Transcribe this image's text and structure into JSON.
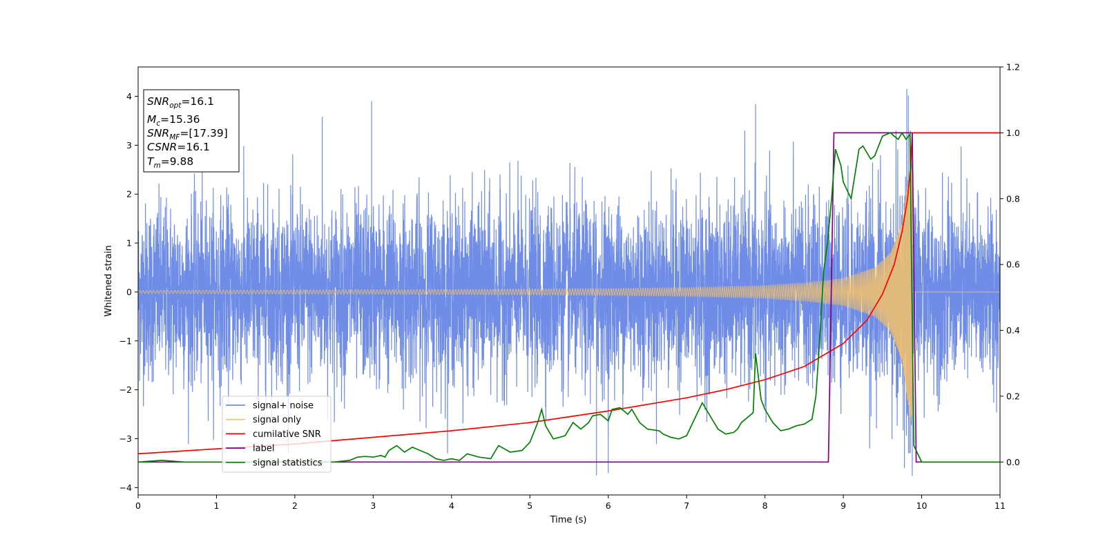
{
  "chart_data": {
    "type": "line",
    "title": "",
    "xlabel": "Time (s)",
    "ylabel": "Whitened strain",
    "xlim": [
      0,
      11
    ],
    "ylim": [
      -4.15,
      4.6
    ],
    "y2lim": [
      -0.1,
      1.2
    ],
    "x_ticks": [
      "0",
      "1",
      "2",
      "3",
      "4",
      "5",
      "6",
      "7",
      "8",
      "9",
      "10",
      "11"
    ],
    "y_ticks": [
      "4",
      "3",
      "2",
      "1",
      "0",
      "−1",
      "−2",
      "−3",
      "−4"
    ],
    "y2_ticks": [
      "1.2",
      "1.0",
      "0.8",
      "0.6",
      "0.4",
      "0.2",
      "0.0"
    ],
    "grid": false,
    "legend_position": "lower-left",
    "colors": {
      "signal_noise": "#6f8de6",
      "signal_only": "#f5c168",
      "cumulative_snr": "#ff0000",
      "label": "#800080",
      "signal_statistics": "#008000"
    },
    "legend": [
      {
        "key": "signal_noise",
        "label": "signal+ noise"
      },
      {
        "key": "signal_only",
        "label": "signal only"
      },
      {
        "key": "cumulative_snr",
        "label": "cumilative SNR"
      },
      {
        "key": "label",
        "label": "label"
      },
      {
        "key": "signal_statistics",
        "label": "signal statistics"
      }
    ],
    "annotation": {
      "snr_opt": {
        "name": "SNR",
        "sub": "opt",
        "value": "=16.1"
      },
      "mc": {
        "name": "M",
        "sub": "c",
        "value": "=15.36"
      },
      "snr_mf": {
        "name": "SNR",
        "sub": "MF",
        "value": "=[17.39]"
      },
      "csnr": {
        "name": "CSNR",
        "value": "=16.1"
      },
      "tm": {
        "name": "T",
        "sub": "m",
        "value": "=9.88"
      }
    },
    "series": {
      "signal_noise": {
        "axis": "left",
        "description_values": "Gaussian noise with typical range about ±2.5 and peaks near 4.2, ending at 11 s",
        "spike_points": [
          [
            2.35,
            3.58
          ],
          [
            2.98,
            3.9
          ],
          [
            7.88,
            3.84
          ],
          [
            9.81,
            4.15
          ],
          [
            9.83,
            4.02
          ],
          [
            5.85,
            -3.75
          ],
          [
            6.0,
            -3.7
          ],
          [
            9.78,
            -3.6
          ],
          [
            9.88,
            -3.76
          ]
        ]
      },
      "signal_only": {
        "axis": "left",
        "description_values": "chirp with amplitude growing from 0.03 to about 2.6 at merger t=9.88 s, then 0",
        "amplitude": [
          [
            0,
            0.03
          ],
          [
            2,
            0.04
          ],
          [
            4,
            0.05
          ],
          [
            6,
            0.07
          ],
          [
            7,
            0.09
          ],
          [
            8,
            0.13
          ],
          [
            8.5,
            0.18
          ],
          [
            9,
            0.28
          ],
          [
            9.4,
            0.5
          ],
          [
            9.6,
            0.8
          ],
          [
            9.75,
            1.4
          ],
          [
            9.85,
            2.6
          ],
          [
            9.88,
            2.7
          ]
        ]
      },
      "cumulative_snr": {
        "axis": "right",
        "points": [
          [
            0,
            0.025
          ],
          [
            1,
            0.04
          ],
          [
            2,
            0.055
          ],
          [
            3,
            0.075
          ],
          [
            4,
            0.095
          ],
          [
            5,
            0.12
          ],
          [
            6,
            0.155
          ],
          [
            7,
            0.195
          ],
          [
            7.5,
            0.22
          ],
          [
            8,
            0.25
          ],
          [
            8.5,
            0.29
          ],
          [
            9,
            0.36
          ],
          [
            9.3,
            0.43
          ],
          [
            9.5,
            0.51
          ],
          [
            9.65,
            0.6
          ],
          [
            9.75,
            0.7
          ],
          [
            9.82,
            0.8
          ],
          [
            9.86,
            0.9
          ],
          [
            9.88,
            1.0
          ],
          [
            11,
            1.0
          ]
        ]
      },
      "label": {
        "axis": "right",
        "points": [
          [
            0,
            0.0
          ],
          [
            8.81,
            0.0
          ],
          [
            8.88,
            1.0
          ],
          [
            9.88,
            1.0
          ],
          [
            9.93,
            0.0
          ],
          [
            11,
            0.0
          ]
        ]
      },
      "signal_statistics": {
        "axis": "right",
        "points": [
          [
            0,
            0.0
          ],
          [
            0.3,
            0.005
          ],
          [
            0.6,
            0.0
          ],
          [
            2.5,
            0.0
          ],
          [
            2.7,
            0.005
          ],
          [
            2.8,
            0.015
          ],
          [
            2.9,
            0.017
          ],
          [
            3.0,
            0.015
          ],
          [
            3.1,
            0.02
          ],
          [
            3.15,
            0.015
          ],
          [
            3.2,
            0.035
          ],
          [
            3.3,
            0.05
          ],
          [
            3.4,
            0.03
          ],
          [
            3.5,
            0.045
          ],
          [
            3.6,
            0.035
          ],
          [
            3.7,
            0.025
          ],
          [
            3.8,
            0.01
          ],
          [
            3.9,
            0.005
          ],
          [
            4.0,
            0.01
          ],
          [
            4.1,
            0.005
          ],
          [
            4.2,
            0.025
          ],
          [
            4.35,
            0.015
          ],
          [
            4.5,
            0.01
          ],
          [
            4.6,
            0.05
          ],
          [
            4.75,
            0.03
          ],
          [
            4.9,
            0.035
          ],
          [
            5.0,
            0.06
          ],
          [
            5.1,
            0.12
          ],
          [
            5.15,
            0.16
          ],
          [
            5.2,
            0.11
          ],
          [
            5.3,
            0.07
          ],
          [
            5.45,
            0.08
          ],
          [
            5.5,
            0.1
          ],
          [
            5.55,
            0.12
          ],
          [
            5.65,
            0.1
          ],
          [
            5.75,
            0.12
          ],
          [
            5.8,
            0.14
          ],
          [
            5.9,
            0.145
          ],
          [
            6.0,
            0.125
          ],
          [
            6.05,
            0.16
          ],
          [
            6.15,
            0.165
          ],
          [
            6.25,
            0.145
          ],
          [
            6.3,
            0.16
          ],
          [
            6.4,
            0.12
          ],
          [
            6.5,
            0.1
          ],
          [
            6.65,
            0.095
          ],
          [
            6.7,
            0.085
          ],
          [
            6.8,
            0.075
          ],
          [
            6.9,
            0.07
          ],
          [
            6.95,
            0.075
          ],
          [
            7.0,
            0.08
          ],
          [
            7.1,
            0.13
          ],
          [
            7.2,
            0.18
          ],
          [
            7.3,
            0.14
          ],
          [
            7.4,
            0.1
          ],
          [
            7.5,
            0.085
          ],
          [
            7.6,
            0.09
          ],
          [
            7.65,
            0.1
          ],
          [
            7.7,
            0.12
          ],
          [
            7.85,
            0.15
          ],
          [
            7.88,
            0.33
          ],
          [
            7.95,
            0.19
          ],
          [
            8.0,
            0.16
          ],
          [
            8.1,
            0.12
          ],
          [
            8.2,
            0.095
          ],
          [
            8.3,
            0.1
          ],
          [
            8.4,
            0.11
          ],
          [
            8.5,
            0.115
          ],
          [
            8.6,
            0.13
          ],
          [
            8.65,
            0.2
          ],
          [
            8.7,
            0.38
          ],
          [
            8.75,
            0.58
          ],
          [
            8.8,
            0.67
          ],
          [
            8.85,
            0.8
          ],
          [
            8.9,
            0.95
          ],
          [
            8.97,
            0.9
          ],
          [
            9.0,
            0.85
          ],
          [
            9.1,
            0.8
          ],
          [
            9.2,
            0.95
          ],
          [
            9.25,
            0.96
          ],
          [
            9.35,
            0.92
          ],
          [
            9.4,
            0.93
          ],
          [
            9.5,
            0.99
          ],
          [
            9.6,
            1.0
          ],
          [
            9.65,
            0.99
          ],
          [
            9.7,
            0.98
          ],
          [
            9.75,
            1.0
          ],
          [
            9.8,
            0.98
          ],
          [
            9.85,
            0.995
          ],
          [
            9.9,
            0.05
          ],
          [
            10.0,
            0.0
          ],
          [
            11,
            0.0
          ]
        ]
      }
    }
  }
}
